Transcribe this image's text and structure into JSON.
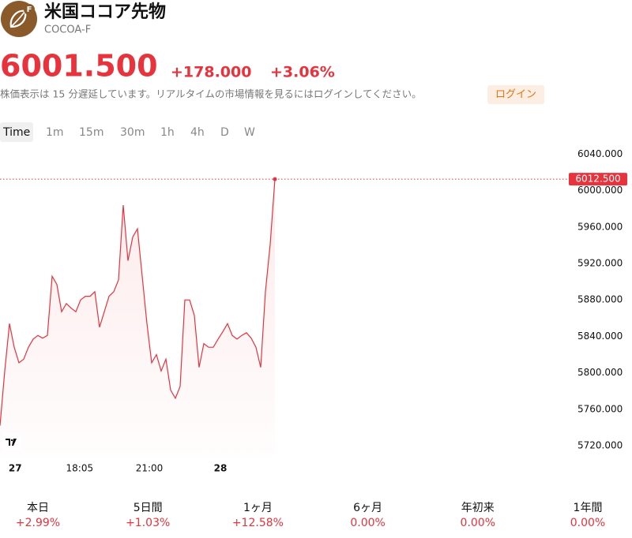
{
  "header": {
    "title": "米国ココア先物",
    "symbol": "COCOA-F",
    "icon_badge": "F"
  },
  "quote": {
    "price": "6001.500",
    "change": "+178.000",
    "change_pct": "+3.06%",
    "notice": "株価表示は 15 分遅延しています。リアルタイムの市場情報を見るにはログインしてください。",
    "login": "ログイン"
  },
  "tabs": [
    "Time",
    "1m",
    "15m",
    "30m",
    "1h",
    "4h",
    "D",
    "W"
  ],
  "chart_data": {
    "type": "area",
    "color": "#e8323c",
    "values": [
      5742,
      5802,
      5854,
      5828,
      5811,
      5815,
      5828,
      5837,
      5841,
      5838,
      5841,
      5906,
      5897,
      5867,
      5876,
      5871,
      5867,
      5880,
      5884,
      5884,
      5889,
      5850,
      5867,
      5884,
      5889,
      5902,
      5984,
      5923,
      5949,
      5958,
      5906,
      5854,
      5811,
      5820,
      5802,
      5815,
      5781,
      5772,
      5785,
      5880,
      5880,
      5863,
      5806,
      5832,
      5828,
      5828,
      5837,
      5845,
      5854,
      5841,
      5837,
      5841,
      5844,
      5838,
      5828,
      5806,
      5889,
      5941,
      6012.5
    ],
    "xlim": [
      0,
      120
    ],
    "xticks": [
      {
        "value": 3.2,
        "label": "27"
      },
      {
        "value": 16.8,
        "label": "18:05"
      },
      {
        "value": 31.5,
        "label": "21:00"
      },
      {
        "value": 46.5,
        "label": "28"
      }
    ],
    "ylim": [
      5707,
      6049
    ],
    "yticks": [
      {
        "value": 5720,
        "label": "5720.000"
      },
      {
        "value": 5760,
        "label": "5760.000"
      },
      {
        "value": 5800,
        "label": "5800.000"
      },
      {
        "value": 5840,
        "label": "5840.000"
      },
      {
        "value": 5880,
        "label": "5880.000"
      },
      {
        "value": 5920,
        "label": "5920.000"
      },
      {
        "value": 5960,
        "label": "5960.000"
      },
      {
        "value": 6000,
        "label": "6000.000"
      },
      {
        "value": 6040,
        "label": "6040.000"
      }
    ],
    "price_line": {
      "value": 6012.5,
      "label": "6012.500"
    }
  },
  "periods": [
    {
      "label": "本日",
      "change": "+2.99%"
    },
    {
      "label": "5日間",
      "change": "+1.03%"
    },
    {
      "label": "1ヶ月",
      "change": "+12.58%"
    },
    {
      "label": "6ヶ月",
      "change": "0.00%"
    },
    {
      "label": "年初来",
      "change": "0.00%"
    },
    {
      "label": "1年間",
      "change": "0.00%"
    }
  ]
}
